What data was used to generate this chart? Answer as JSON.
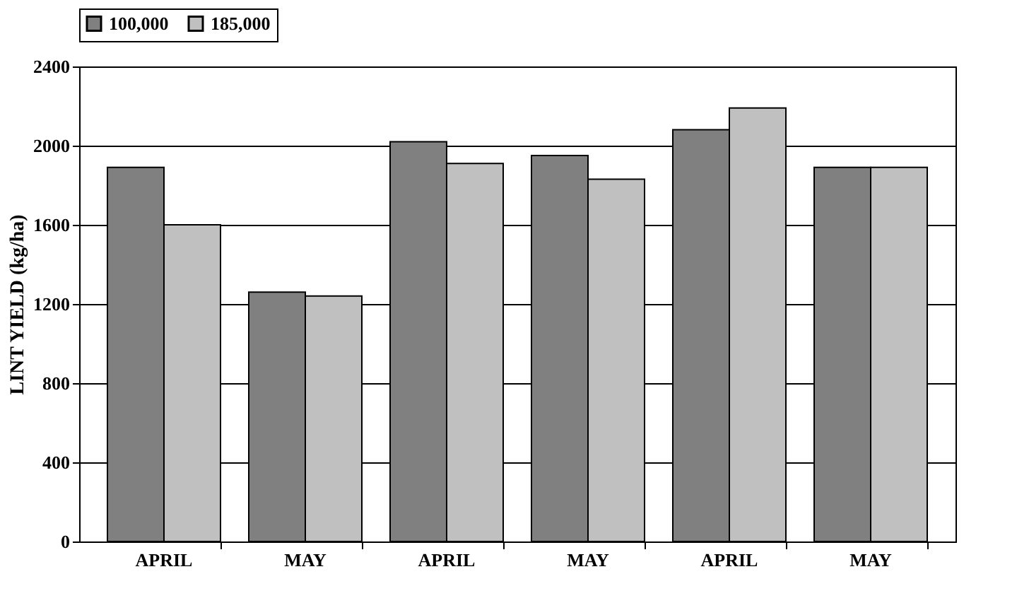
{
  "chart_data": {
    "type": "bar",
    "ylabel": "LINT YIELD (kg/ha)",
    "categories": [
      "APRIL",
      "MAY",
      "APRIL",
      "MAY",
      "APRIL",
      "MAY"
    ],
    "series": [
      {
        "name": "100,000",
        "color": "#808080",
        "values": [
          1890,
          1260,
          2020,
          1950,
          2080,
          1890
        ]
      },
      {
        "name": "185,000",
        "color": "#c0c0c0",
        "values": [
          1600,
          1240,
          1910,
          1830,
          2190,
          1890
        ]
      }
    ],
    "ylim": [
      0,
      2400
    ],
    "yticks": [
      0,
      400,
      800,
      1200,
      1600,
      2000,
      2400
    ],
    "grid": "y",
    "legend": "top"
  }
}
